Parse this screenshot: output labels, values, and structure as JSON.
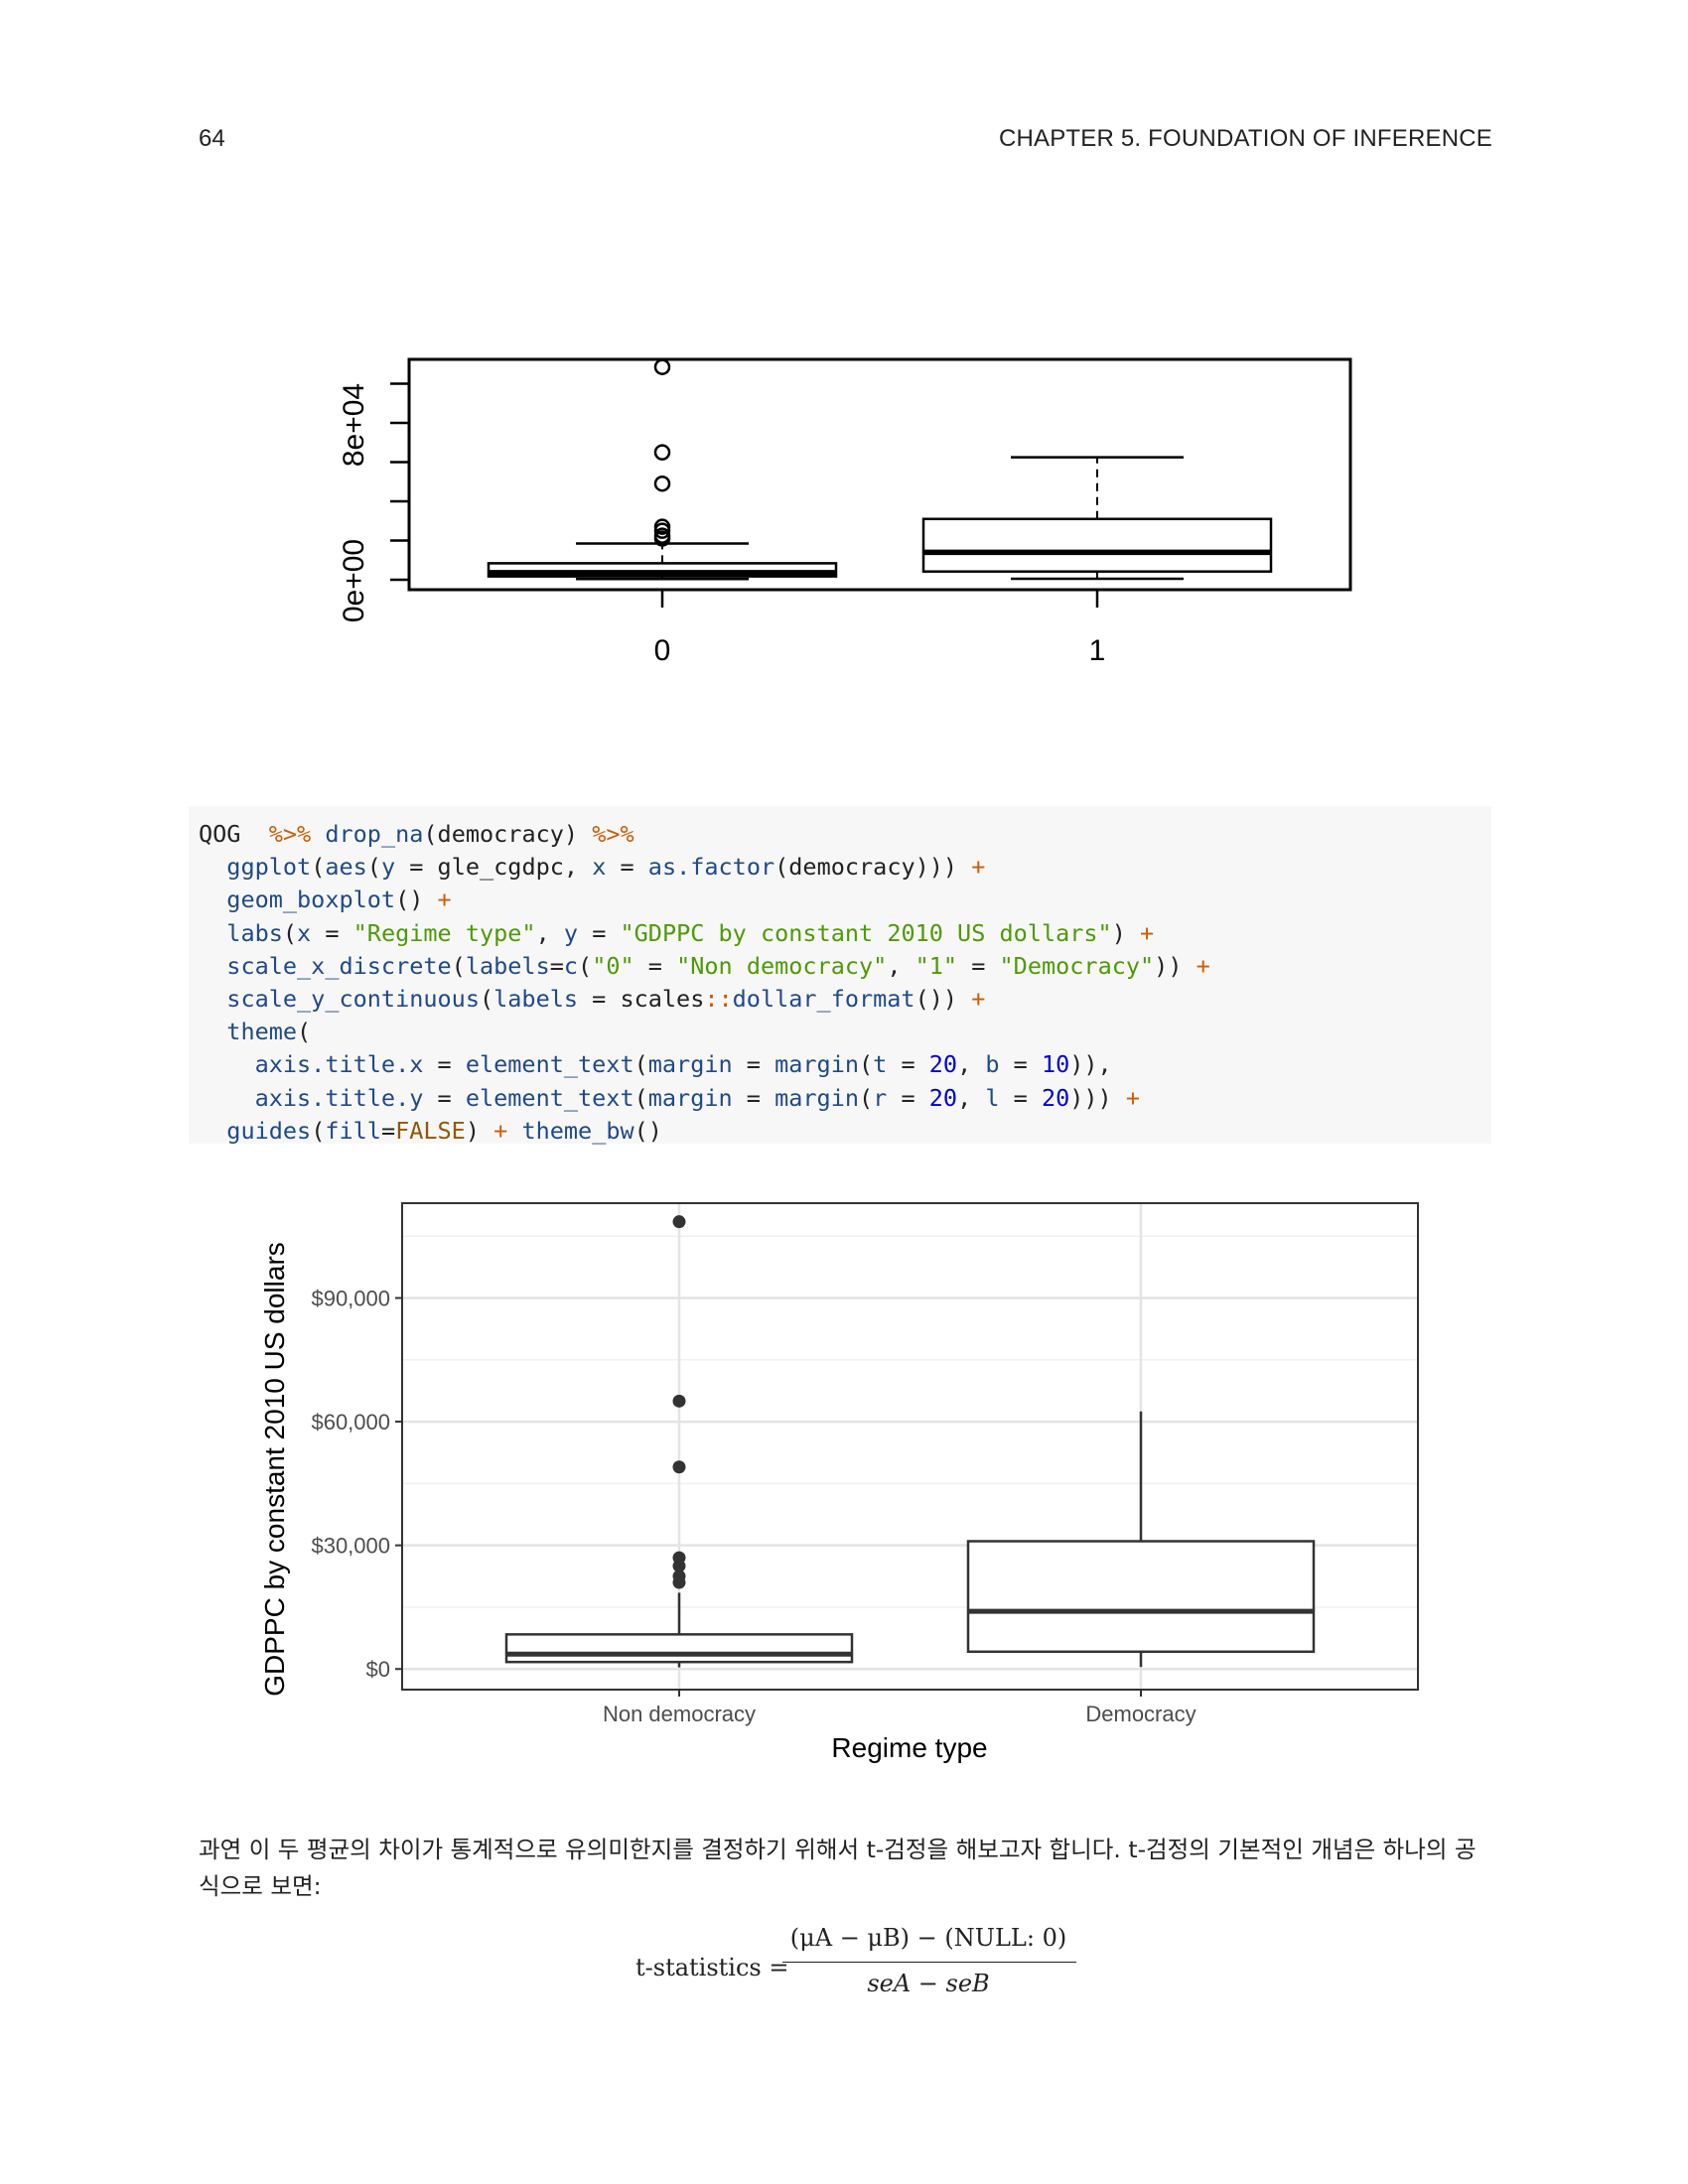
{
  "page": {
    "number": "64",
    "chapter": "CHAPTER 5.  FOUNDATION OF INFERENCE"
  },
  "base_plot": {
    "y_ticks": [
      "0e+00",
      "8e+04"
    ],
    "x_ticks": [
      "0",
      "1"
    ]
  },
  "code_lines": [
    [
      [
        "plain",
        "QOG  "
      ],
      [
        "op",
        "%>%"
      ],
      [
        "plain",
        " "
      ],
      [
        "fn",
        "drop_na"
      ],
      [
        "plain",
        "(democracy) "
      ],
      [
        "op",
        "%>%"
      ]
    ],
    [
      [
        "plain",
        "  "
      ],
      [
        "fn",
        "ggplot"
      ],
      [
        "plain",
        "("
      ],
      [
        "fn",
        "aes"
      ],
      [
        "plain",
        "("
      ],
      [
        "fn",
        "y"
      ],
      [
        "plain",
        " = gle_cgdpc, "
      ],
      [
        "fn",
        "x"
      ],
      [
        "plain",
        " = "
      ],
      [
        "fn",
        "as.factor"
      ],
      [
        "plain",
        "(democracy))) "
      ],
      [
        "op",
        "+"
      ]
    ],
    [
      [
        "plain",
        "  "
      ],
      [
        "fn",
        "geom_boxplot"
      ],
      [
        "plain",
        "() "
      ],
      [
        "op",
        "+"
      ]
    ],
    [
      [
        "plain",
        "  "
      ],
      [
        "fn",
        "labs"
      ],
      [
        "plain",
        "("
      ],
      [
        "fn",
        "x"
      ],
      [
        "plain",
        " = "
      ],
      [
        "str",
        "\"Regime type\""
      ],
      [
        "plain",
        ", "
      ],
      [
        "fn",
        "y"
      ],
      [
        "plain",
        " = "
      ],
      [
        "str",
        "\"GDPPC by constant 2010 US dollars\""
      ],
      [
        "plain",
        ") "
      ],
      [
        "op",
        "+"
      ]
    ],
    [
      [
        "plain",
        "  "
      ],
      [
        "fn",
        "scale_x_discrete"
      ],
      [
        "plain",
        "("
      ],
      [
        "fn",
        "labels"
      ],
      [
        "plain",
        "="
      ],
      [
        "fn",
        "c"
      ],
      [
        "plain",
        "("
      ],
      [
        "str",
        "\"0\""
      ],
      [
        "plain",
        " = "
      ],
      [
        "str",
        "\"Non democracy\""
      ],
      [
        "plain",
        ", "
      ],
      [
        "str",
        "\"1\""
      ],
      [
        "plain",
        " = "
      ],
      [
        "str",
        "\"Democracy\""
      ],
      [
        "plain",
        ")) "
      ],
      [
        "op",
        "+"
      ]
    ],
    [
      [
        "plain",
        "  "
      ],
      [
        "fn",
        "scale_y_continuous"
      ],
      [
        "plain",
        "("
      ],
      [
        "fn",
        "labels"
      ],
      [
        "plain",
        " = scales"
      ],
      [
        "op",
        "::"
      ],
      [
        "fn",
        "dollar_format"
      ],
      [
        "plain",
        "()) "
      ],
      [
        "op",
        "+"
      ]
    ],
    [
      [
        "plain",
        "  "
      ],
      [
        "fn",
        "theme"
      ],
      [
        "plain",
        "("
      ]
    ],
    [
      [
        "plain",
        "    "
      ],
      [
        "fn",
        "axis.title.x"
      ],
      [
        "plain",
        " = "
      ],
      [
        "fn",
        "element_text"
      ],
      [
        "plain",
        "("
      ],
      [
        "fn",
        "margin"
      ],
      [
        "plain",
        " = "
      ],
      [
        "fn",
        "margin"
      ],
      [
        "plain",
        "("
      ],
      [
        "fn",
        "t"
      ],
      [
        "plain",
        " = "
      ],
      [
        "num",
        "20"
      ],
      [
        "plain",
        ", "
      ],
      [
        "fn",
        "b"
      ],
      [
        "plain",
        " = "
      ],
      [
        "num",
        "10"
      ],
      [
        "plain",
        ")),"
      ]
    ],
    [
      [
        "plain",
        "    "
      ],
      [
        "fn",
        "axis.title.y"
      ],
      [
        "plain",
        " = "
      ],
      [
        "fn",
        "element_text"
      ],
      [
        "plain",
        "("
      ],
      [
        "fn",
        "margin"
      ],
      [
        "plain",
        " = "
      ],
      [
        "fn",
        "margin"
      ],
      [
        "plain",
        "("
      ],
      [
        "fn",
        "r"
      ],
      [
        "plain",
        " = "
      ],
      [
        "num",
        "20"
      ],
      [
        "plain",
        ", "
      ],
      [
        "fn",
        "l"
      ],
      [
        "plain",
        " = "
      ],
      [
        "num",
        "20"
      ],
      [
        "plain",
        "))) "
      ],
      [
        "op",
        "+"
      ]
    ],
    [
      [
        "plain",
        "  "
      ],
      [
        "fn",
        "guides"
      ],
      [
        "plain",
        "("
      ],
      [
        "fn",
        "fill"
      ],
      [
        "plain",
        "="
      ],
      [
        "const",
        "FALSE"
      ],
      [
        "plain",
        ") "
      ],
      [
        "op",
        "+"
      ],
      [
        "plain",
        " "
      ],
      [
        "fn",
        "theme_bw"
      ],
      [
        "plain",
        "()"
      ]
    ]
  ],
  "chart_data": {
    "type": "box",
    "categories": [
      "Non democracy",
      "Democracy"
    ],
    "xlabel": "Regime type",
    "ylabel": "GDPPC by constant 2010 US dollars",
    "y_tick_values": [
      0,
      30000,
      60000,
      90000
    ],
    "y_tick_labels": [
      "$0",
      "$30,000",
      "$60,000",
      "$90,000"
    ],
    "ylim": [
      -5000,
      113000
    ],
    "boxes": [
      {
        "category": "Non democracy",
        "whisker_low": 400,
        "q1": 1700,
        "median": 3600,
        "q3": 8400,
        "whisker_high": 18500,
        "outliers": [
          21000,
          22500,
          25000,
          27000,
          49000,
          65000,
          108500
        ]
      },
      {
        "category": "Democracy",
        "whisker_low": 500,
        "q1": 4200,
        "median": 14000,
        "q3": 31000,
        "whisker_high": 62500,
        "outliers": []
      }
    ],
    "grid": true
  },
  "paragraph": "과연 이 두 평균의 차이가 통계적으로 유의미한지를 결정하기 위해서 t-검정을 해보고자 합니다. t-검정의 기본적인 개념은 하나의 공식으로 보면:",
  "formula": {
    "lhs": "t-statistics =",
    "numerator": "(μA − μB) − (NULL: 0)",
    "denominator": "seA − seB"
  }
}
